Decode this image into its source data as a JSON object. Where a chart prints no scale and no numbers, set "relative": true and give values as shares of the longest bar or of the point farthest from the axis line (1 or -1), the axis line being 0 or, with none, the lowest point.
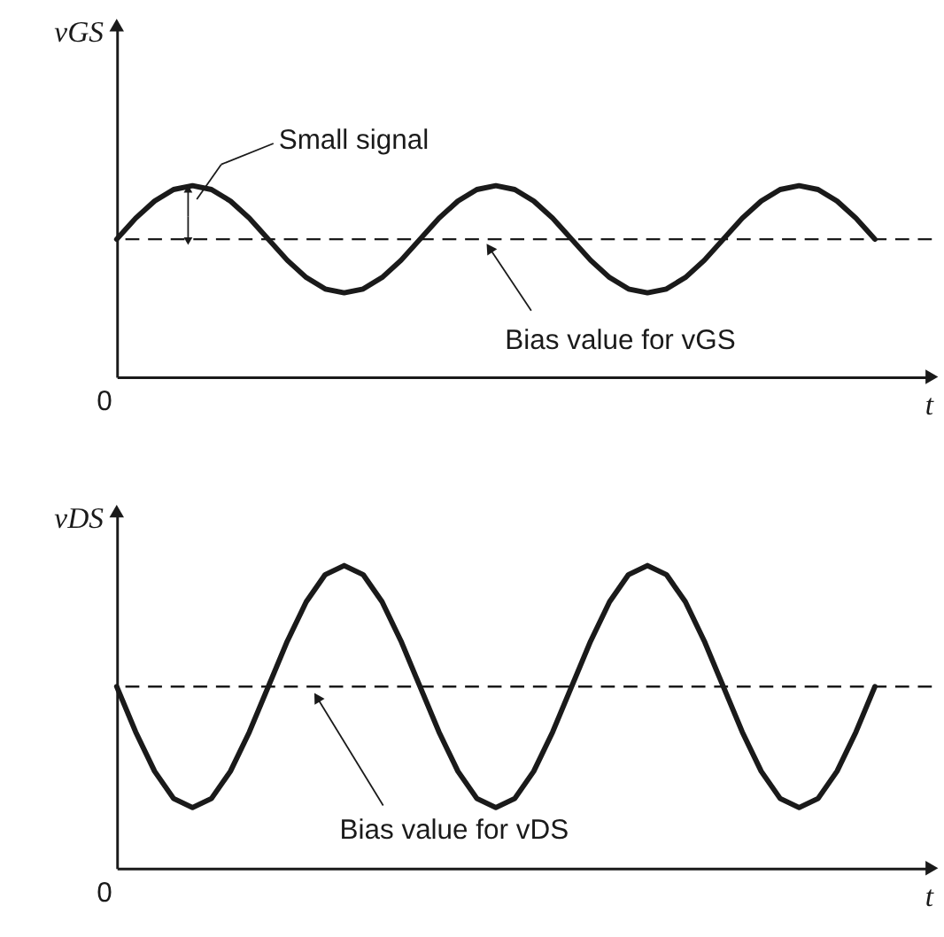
{
  "chart_data": [
    {
      "type": "line",
      "relative": true,
      "ylabel": "vGS",
      "xlabel": "t",
      "categories": [
        null,
        null,
        null,
        null,
        null,
        null,
        null,
        null,
        null,
        null,
        null,
        null,
        null,
        null,
        null,
        null,
        null,
        null,
        null,
        null,
        null,
        null,
        null,
        null,
        null,
        null,
        null,
        null,
        null,
        null,
        null,
        null,
        null,
        null,
        null,
        null,
        null,
        null,
        null,
        null,
        null
      ],
      "series": [
        {
          "color": "#1a1a1a",
          "values": [
            0.72,
            0.83,
            0.92,
            0.98,
            1,
            0.98,
            0.92,
            0.83,
            0.72,
            0.61,
            0.52,
            0.46,
            0.44,
            0.46,
            0.52,
            0.61,
            0.72,
            0.83,
            0.92,
            0.98,
            1,
            0.98,
            0.92,
            0.83,
            0.72,
            0.61,
            0.52,
            0.46,
            0.44,
            0.46,
            0.52,
            0.61,
            0.72,
            0.83,
            0.92,
            0.98,
            1,
            0.98,
            0.92,
            0.83,
            0.72
          ]
        }
      ],
      "ref_lines": [
        {
          "axis": "y",
          "value": 0.72,
          "label": "Bias value for vGS",
          "line_style": "dashed",
          "color": "#1a1a1a"
        }
      ],
      "annotations": [
        "Small signal",
        "0"
      ]
    },
    {
      "type": "line",
      "relative": true,
      "ylabel": "vDS",
      "xlabel": "t",
      "categories": [
        null,
        null,
        null,
        null,
        null,
        null,
        null,
        null,
        null,
        null,
        null,
        null,
        null,
        null,
        null,
        null,
        null,
        null,
        null,
        null,
        null,
        null,
        null,
        null,
        null,
        null,
        null,
        null,
        null,
        null,
        null,
        null,
        null,
        null,
        null,
        null,
        null,
        null,
        null,
        null,
        null
      ],
      "series": [
        {
          "color": "#1a1a1a",
          "values": [
            0.6,
            0.45,
            0.32,
            0.23,
            0.2,
            0.23,
            0.32,
            0.45,
            0.6,
            0.75,
            0.88,
            0.97,
            1,
            0.97,
            0.88,
            0.75,
            0.6,
            0.45,
            0.32,
            0.23,
            0.2,
            0.23,
            0.32,
            0.45,
            0.6,
            0.75,
            0.88,
            0.97,
            1,
            0.97,
            0.88,
            0.75,
            0.6,
            0.45,
            0.32,
            0.23,
            0.2,
            0.23,
            0.32,
            0.45,
            0.6
          ]
        }
      ],
      "ref_lines": [
        {
          "axis": "y",
          "value": 0.6,
          "label": "Bias value for vDS",
          "line_style": "dashed",
          "color": "#1a1a1a"
        }
      ],
      "annotations": [
        "0"
      ]
    }
  ]
}
